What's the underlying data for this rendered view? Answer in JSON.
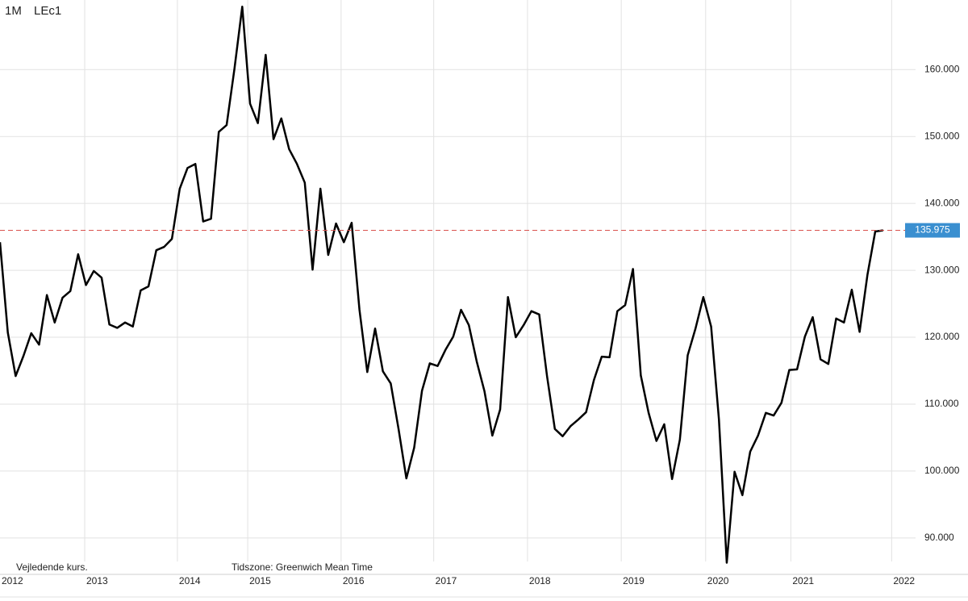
{
  "chart_data": {
    "type": "line",
    "interval": "1M",
    "note_left": "Vejledende kurs.",
    "note_timezone": "Tidszone: Greenwich Mean Time",
    "series": [
      {
        "name": "LEc1",
        "color": "#000000",
        "values": [
          134.2,
          120.7,
          114.2,
          117.2,
          120.6,
          118.9,
          126.3,
          122.2,
          125.9,
          126.9,
          132.4,
          127.8,
          129.9,
          128.9,
          121.9,
          121.4,
          122.2,
          121.6,
          127.0,
          127.6,
          133.0,
          133.5,
          134.7,
          142.2,
          145.3,
          145.9,
          137.3,
          137.7,
          150.7,
          151.7,
          160.1,
          169.4,
          154.9,
          152.0,
          162.2,
          149.6,
          152.7,
          148.1,
          145.9,
          143.1,
          130.1,
          142.2,
          132.3,
          137.0,
          134.2,
          137.1,
          124.1,
          114.8,
          121.3,
          114.9,
          113.1,
          106.3,
          98.9,
          103.5,
          112.0,
          116.1,
          115.7,
          118.1,
          120.1,
          124.1,
          121.8,
          116.4,
          111.9,
          105.3,
          109.2,
          126.0,
          120.0,
          121.8,
          123.9,
          123.4,
          114.2,
          106.3,
          105.2,
          106.7,
          107.7,
          108.8,
          113.6,
          117.1,
          117.0,
          123.9,
          124.8,
          130.2,
          114.3,
          108.7,
          104.5,
          107.0,
          98.8,
          104.7,
          117.3,
          121.3,
          126.0,
          121.6,
          107.7,
          86.3,
          99.9,
          96.4,
          102.9,
          105.3,
          108.7,
          108.3,
          110.2,
          115.1,
          115.2,
          120.1,
          123.0,
          116.7,
          116.0,
          122.8,
          122.2,
          127.1,
          120.8,
          129.3,
          135.8,
          135.975
        ]
      }
    ],
    "last_price": 135.975,
    "last_price_color": "#3a8fd0",
    "ylim": [
      84.8,
      170.4
    ],
    "yticks": [
      {
        "value": 90,
        "label": "90.000"
      },
      {
        "value": 100,
        "label": "100.000"
      },
      {
        "value": 110,
        "label": "110.000"
      },
      {
        "value": 120,
        "label": "120.000"
      },
      {
        "value": 130,
        "label": "130.000"
      },
      {
        "value": 140,
        "label": "140.000"
      },
      {
        "value": 150,
        "label": "150.000"
      },
      {
        "value": 160,
        "label": "160.000"
      }
    ],
    "xlim": [
      0,
      112
    ],
    "xticks": [
      {
        "value": 0,
        "label": "2012"
      },
      {
        "value": 10.84,
        "label": "2013"
      },
      {
        "value": 22.7,
        "label": "2014"
      },
      {
        "value": 31.7,
        "label": "2015"
      },
      {
        "value": 43.65,
        "label": "2016"
      },
      {
        "value": 55.5,
        "label": "2017"
      },
      {
        "value": 67.5,
        "label": "2018"
      },
      {
        "value": 79.5,
        "label": "2019"
      },
      {
        "value": 90.3,
        "label": "2020"
      },
      {
        "value": 101.2,
        "label": "2021"
      },
      {
        "value": 114.1,
        "label": "2022"
      }
    ],
    "grid": true
  }
}
